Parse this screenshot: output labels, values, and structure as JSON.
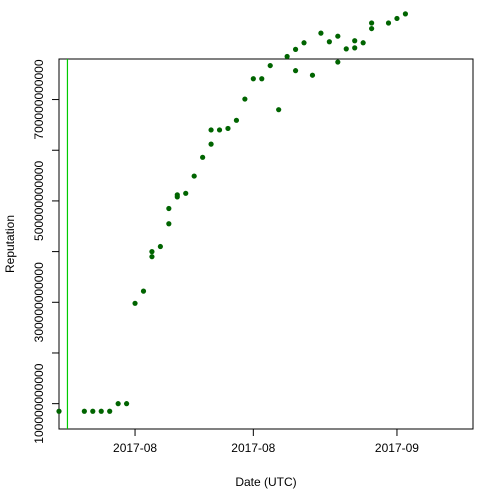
{
  "chart_data": {
    "type": "scatter",
    "title": "",
    "xlabel": "Date (UTC)",
    "ylabel": "Reputation",
    "x_axis_type": "date",
    "xlim": [
      "2017-07-23",
      "2017-09-10"
    ],
    "ylim": [
      50000000000,
      780000000000
    ],
    "x_ticks": [
      {
        "value": "2017-08-01",
        "label": "2017-08"
      },
      {
        "value": "2017-08-15",
        "label": "2017-08"
      },
      {
        "value": "2017-09-01",
        "label": "2017-09"
      }
    ],
    "y_ticks": [
      {
        "value": 100000000000,
        "label": "100000000000"
      },
      {
        "value": 300000000000,
        "label": "300000000000"
      },
      {
        "value": 500000000000,
        "label": "500000000000"
      },
      {
        "value": 700000000000,
        "label": "700000000000"
      }
    ],
    "y_minor_ticks": [
      200000000000,
      400000000000,
      600000000000
    ],
    "grid": false,
    "legend": "none",
    "colors": {
      "points": "#006400",
      "vline": "#00cc00",
      "axis": "#000000"
    },
    "vertical_line": {
      "x": "2017-07-24"
    },
    "series": [
      {
        "x": [
          "2017-07-23",
          "2017-07-26",
          "2017-07-27",
          "2017-07-28",
          "2017-07-29",
          "2017-07-30",
          "2017-07-31",
          "2017-08-01",
          "2017-08-02",
          "2017-08-03",
          "2017-08-03",
          "2017-08-04",
          "2017-08-05",
          "2017-08-05",
          "2017-08-06",
          "2017-08-06",
          "2017-08-07",
          "2017-08-08",
          "2017-08-09",
          "2017-08-10",
          "2017-08-10",
          "2017-08-11",
          "2017-08-12",
          "2017-08-13",
          "2017-08-14",
          "2017-08-15",
          "2017-08-16",
          "2017-08-17",
          "2017-08-18",
          "2017-08-19",
          "2017-08-20",
          "2017-08-20",
          "2017-08-21",
          "2017-08-22",
          "2017-08-23",
          "2017-08-24",
          "2017-08-25",
          "2017-08-25",
          "2017-08-26",
          "2017-08-27",
          "2017-08-27",
          "2017-08-28",
          "2017-08-29",
          "2017-08-29",
          "2017-08-31",
          "2017-09-01",
          "2017-09-02"
        ],
        "y": [
          85000000000,
          85000000000,
          85000000000,
          85000000000,
          85000000000,
          100000000000,
          100000000000,
          298000000000,
          322000000000,
          390000000000,
          400000000000,
          410000000000,
          455000000000,
          485000000000,
          508000000000,
          512000000000,
          515000000000,
          549000000000,
          586000000000,
          612000000000,
          640000000000,
          640000000000,
          643000000000,
          659000000000,
          701000000000,
          741000000000,
          741000000000,
          767000000000,
          680000000000,
          785000000000,
          799000000000,
          757000000000,
          812000000000,
          748000000000,
          831000000000,
          814000000000,
          825000000000,
          774000000000,
          800000000000,
          802000000000,
          816000000000,
          812000000000,
          840000000000,
          851000000000,
          851000000000,
          860000000000,
          869000000000
        ]
      }
    ]
  }
}
